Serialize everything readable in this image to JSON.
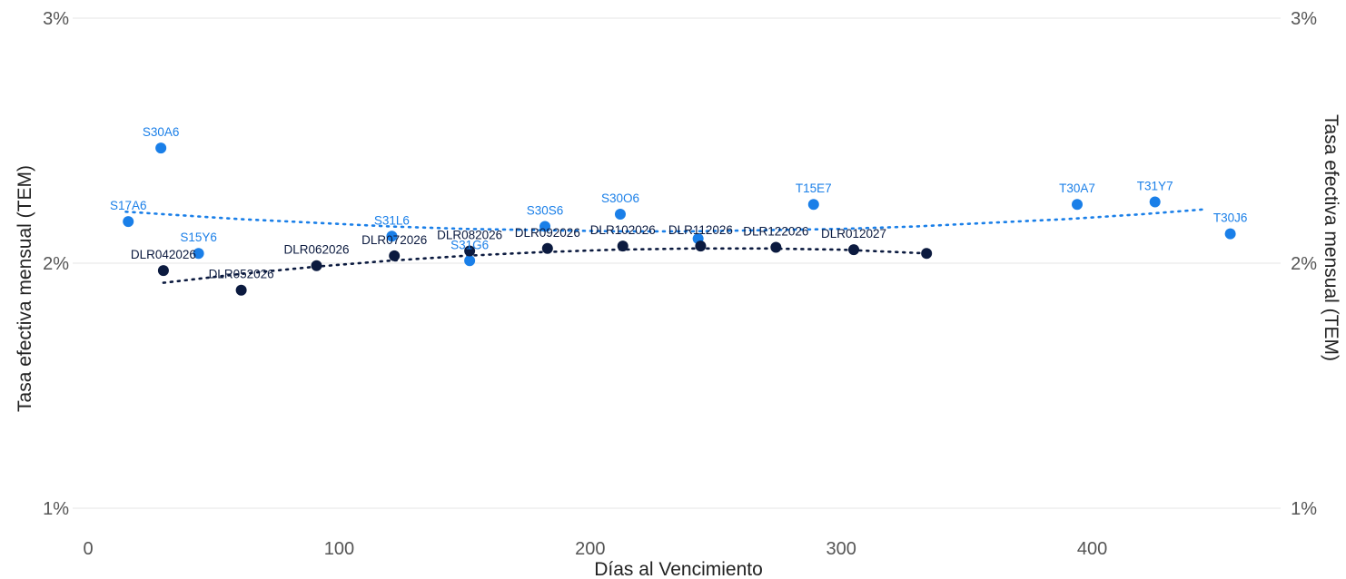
{
  "chart_data": {
    "type": "scatter",
    "title": "",
    "xlabel": "Días al Vencimiento",
    "ylabel": "Tasa efectiva mensual (TEM)",
    "ylabel_right": "Tasa efectiva mensual (TEM)",
    "xlim": [
      -5,
      460
    ],
    "ylim": [
      1.0,
      3.0
    ],
    "x_ticks": [
      0,
      100,
      200,
      300,
      400
    ],
    "x_tick_labels": [
      "0",
      "100",
      "200",
      "300",
      "400"
    ],
    "y_ticks": [
      1.0,
      2.0,
      3.0
    ],
    "y_tick_labels": [
      "1%",
      "2%",
      "3%"
    ],
    "grid": true,
    "legend": "none",
    "colors": {
      "lecap": "#1a7fe8",
      "dollar_linked": "#0b1a3f"
    },
    "series": [
      {
        "color": "#1a7fe8",
        "trend": [
          [
            15,
            2.21
          ],
          [
            30,
            2.2
          ],
          [
            60,
            2.18
          ],
          [
            90,
            2.165
          ],
          [
            120,
            2.15
          ],
          [
            150,
            2.14
          ],
          [
            180,
            2.135
          ],
          [
            210,
            2.13
          ],
          [
            240,
            2.13
          ],
          [
            270,
            2.135
          ],
          [
            300,
            2.14
          ],
          [
            330,
            2.15
          ],
          [
            360,
            2.165
          ],
          [
            390,
            2.18
          ],
          [
            420,
            2.2
          ],
          [
            445,
            2.22
          ]
        ],
        "points": [
          {
            "label": "S17A6",
            "x": 16,
            "y": 2.17
          },
          {
            "label": "S30A6",
            "x": 29,
            "y": 2.47
          },
          {
            "label": "S15Y6",
            "x": 44,
            "y": 2.04
          },
          {
            "label": "S31L6",
            "x": 121,
            "y": 2.11
          },
          {
            "label": "S31G6",
            "x": 152,
            "y": 2.01
          },
          {
            "label": "S30S6",
            "x": 182,
            "y": 2.15
          },
          {
            "label": "S30O6",
            "x": 212,
            "y": 2.2
          },
          {
            "label": "",
            "x": 243,
            "y": 2.1
          },
          {
            "label": "T15E7",
            "x": 289,
            "y": 2.24
          },
          {
            "label": "T30A7",
            "x": 394,
            "y": 2.24
          },
          {
            "label": "T31Y7",
            "x": 425,
            "y": 2.25
          },
          {
            "label": "T30J6",
            "x": 455,
            "y": 2.12
          }
        ]
      },
      {
        "color": "#0b1a3f",
        "trend": [
          [
            30,
            1.92
          ],
          [
            60,
            1.955
          ],
          [
            90,
            1.985
          ],
          [
            120,
            2.01
          ],
          [
            150,
            2.03
          ],
          [
            180,
            2.045
          ],
          [
            210,
            2.055
          ],
          [
            240,
            2.06
          ],
          [
            270,
            2.06
          ],
          [
            300,
            2.055
          ],
          [
            334,
            2.04
          ]
        ],
        "points": [
          {
            "label": "DLR042026",
            "x": 30,
            "y": 1.97
          },
          {
            "label": "DLR052026",
            "x": 61,
            "y": 1.89
          },
          {
            "label": "DLR062026",
            "x": 91,
            "y": 1.99
          },
          {
            "label": "DLR072026",
            "x": 122,
            "y": 2.03
          },
          {
            "label": "DLR082026",
            "x": 152,
            "y": 2.05
          },
          {
            "label": "DLR092026",
            "x": 183,
            "y": 2.06
          },
          {
            "label": "DLR102026",
            "x": 213,
            "y": 2.07
          },
          {
            "label": "DLR112026",
            "x": 244,
            "y": 2.07
          },
          {
            "label": "DLR122026",
            "x": 274,
            "y": 2.065
          },
          {
            "label": "DLR012027",
            "x": 305,
            "y": 2.055
          },
          {
            "label": "",
            "x": 334,
            "y": 2.04
          }
        ]
      }
    ]
  }
}
